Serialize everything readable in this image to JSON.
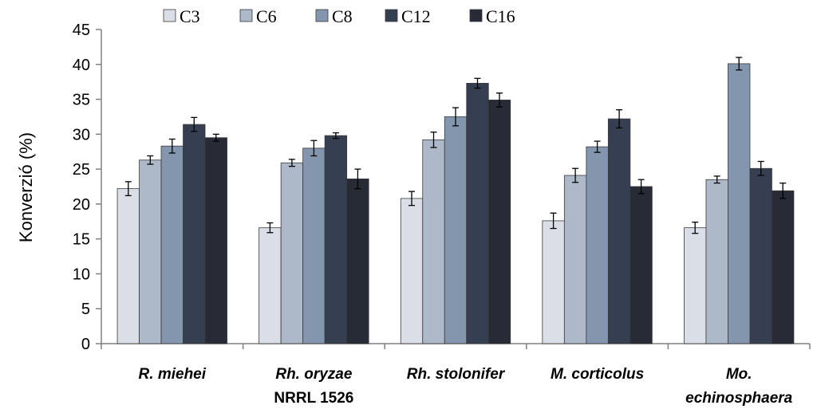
{
  "chart_data": {
    "type": "bar",
    "ylabel": "Konverzió (%)",
    "xlabel": "",
    "title": "",
    "ylim": [
      0,
      45
    ],
    "yticks": [
      0,
      5,
      10,
      15,
      20,
      25,
      30,
      35,
      40,
      45
    ],
    "legend_position": "top",
    "categories": [
      {
        "line1": "R. miehei",
        "line2": "",
        "line2_italic": false
      },
      {
        "line1": "Rh. oryzae",
        "line2": "NRRL 1526",
        "line2_italic": false
      },
      {
        "line1": "Rh. stolonifer",
        "line2": "",
        "line2_italic": false
      },
      {
        "line1": "M. corticolus",
        "line2": "",
        "line2_italic": false
      },
      {
        "line1": "Mo.",
        "line2": "echinosphaera",
        "line2_italic": true
      }
    ],
    "series": [
      {
        "name": "C3",
        "color": "#d9dee7",
        "values": [
          22.2,
          16.6,
          20.8,
          17.6,
          16.6
        ],
        "errors": [
          1.0,
          0.7,
          1.0,
          1.1,
          0.8
        ]
      },
      {
        "name": "C6",
        "color": "#adb8c9",
        "values": [
          26.3,
          25.9,
          29.2,
          24.1,
          23.5
        ],
        "errors": [
          0.6,
          0.5,
          1.1,
          1.0,
          0.5
        ]
      },
      {
        "name": "C8",
        "color": "#8496ae",
        "values": [
          28.3,
          28.0,
          32.5,
          28.2,
          40.1
        ],
        "errors": [
          1.0,
          1.1,
          1.3,
          0.8,
          0.9
        ]
      },
      {
        "name": "C12",
        "color": "#353f51",
        "values": [
          31.4,
          29.8,
          37.3,
          32.2,
          25.1
        ],
        "errors": [
          1.0,
          0.4,
          0.7,
          1.3,
          1.0
        ]
      },
      {
        "name": "C16",
        "color": "#262b36",
        "values": [
          29.5,
          23.6,
          34.9,
          22.5,
          21.9
        ],
        "errors": [
          0.5,
          1.4,
          1.0,
          1.0,
          1.1
        ]
      }
    ]
  }
}
